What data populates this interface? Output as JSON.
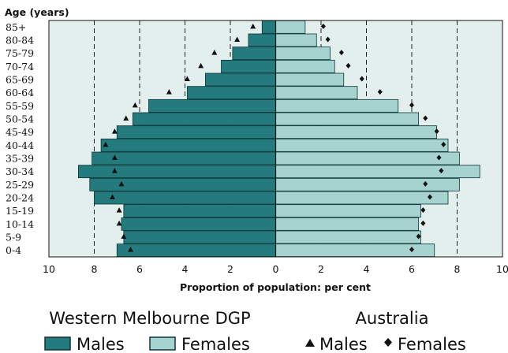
{
  "chart_data": {
    "type": "bar",
    "orientation": "horizontal-population-pyramid",
    "ylabel": "Age (years)",
    "xlabel": "Proportion of population: per cent",
    "xlim": [
      -10,
      10
    ],
    "xticks": [
      -10,
      -8,
      -6,
      -4,
      -2,
      0,
      2,
      4,
      6,
      8,
      10
    ],
    "xtick_labels": [
      "10",
      "8",
      "6",
      "4",
      "2",
      "0",
      "2",
      "4",
      "6",
      "8",
      "10"
    ],
    "grid": "dashed vertical at 2, 4, 6, 8",
    "categories": [
      "0-4",
      "5-9",
      "10-14",
      "15-19",
      "20-24",
      "25-29",
      "30-34",
      "35-39",
      "40-44",
      "45-49",
      "50-54",
      "55-59",
      "60-64",
      "65-69",
      "70-74",
      "75-79",
      "80-84",
      "85+"
    ],
    "series": [
      {
        "name": "Males",
        "group": "Western Melbourne DGP",
        "mark": "bar",
        "values": [
          7.0,
          6.7,
          6.8,
          6.7,
          8.0,
          8.2,
          8.7,
          8.1,
          7.7,
          7.0,
          6.3,
          5.6,
          3.9,
          3.1,
          2.4,
          1.9,
          1.2,
          0.6
        ]
      },
      {
        "name": "Females",
        "group": "Western Melbourne DGP",
        "mark": "bar",
        "values": [
          7.0,
          6.4,
          6.3,
          6.4,
          7.6,
          8.1,
          9.0,
          8.1,
          7.6,
          7.1,
          6.3,
          5.4,
          3.6,
          3.0,
          2.6,
          2.4,
          1.8,
          1.3
        ]
      },
      {
        "name": "Males",
        "group": "Australia",
        "mark": "triangle",
        "values": [
          6.4,
          6.7,
          6.9,
          6.9,
          7.2,
          6.8,
          7.1,
          7.1,
          7.5,
          7.1,
          6.6,
          6.2,
          4.7,
          3.9,
          3.3,
          2.7,
          1.7,
          1.0
        ]
      },
      {
        "name": "Females",
        "group": "Australia",
        "mark": "diamond",
        "values": [
          6.0,
          6.3,
          6.5,
          6.5,
          6.8,
          6.6,
          7.3,
          7.2,
          7.4,
          7.1,
          6.6,
          6.0,
          4.6,
          3.8,
          3.2,
          2.9,
          2.3,
          2.1
        ]
      }
    ],
    "legend": {
      "placement": "bottom",
      "group1_title": "Western Melbourne DGP",
      "group2_title": "Australia",
      "males_label": "Males",
      "females_label": "Females"
    },
    "colors": {
      "background": "#e3efec",
      "males_bar": "#237b7e",
      "females_bar": "#a6d3d0",
      "bar_stroke": "#0d3536",
      "marker": "#111111",
      "gridline": "#222222"
    }
  }
}
